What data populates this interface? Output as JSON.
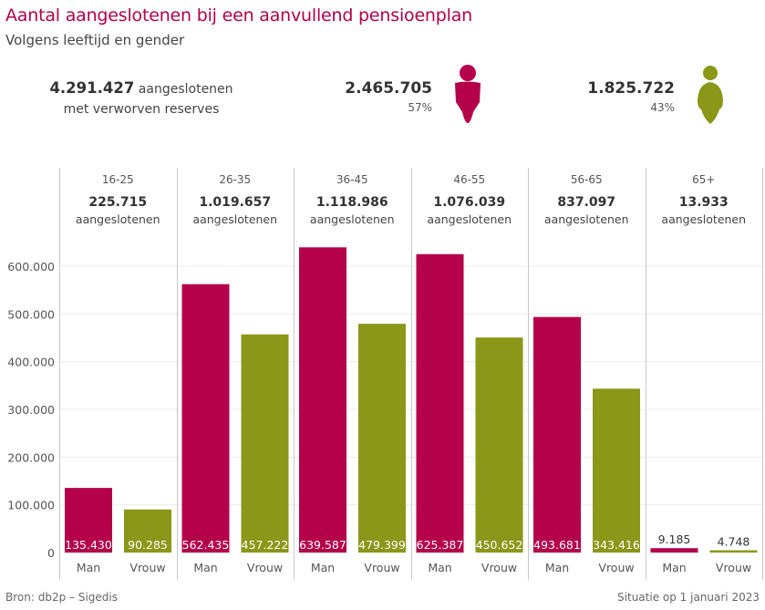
{
  "header": {
    "title": "Aantal aangeslotenen bij een aanvullend pensioenplan",
    "subtitle": "Volgens leeftijd en gender"
  },
  "kpis": {
    "total_value": "4.291.427",
    "total_label_1": "aangeslotenen",
    "total_label_2": "met verworven reserves",
    "men": {
      "value": "2.465.705",
      "pct": "57%",
      "icon": "male-person-icon",
      "color": "#b5004a"
    },
    "women": {
      "value": "1.825.722",
      "pct": "43%",
      "icon": "female-person-icon",
      "color": "#8b9718"
    }
  },
  "colors": {
    "man": "#b5004a",
    "vrouw": "#8b9718",
    "accent": "#b5004a"
  },
  "footer": {
    "source": "Bron: db2p – Sigedis",
    "date": "Situatie op 1 januari 2023"
  },
  "chart_data": {
    "type": "bar",
    "title": "Aantal aangeslotenen bij een aanvullend pensioenplan",
    "subtitle": "Volgens leeftijd en gender",
    "xlabel": "",
    "ylabel": "",
    "ylim": [
      0,
      600000
    ],
    "yticks": [
      0,
      100000,
      200000,
      300000,
      400000,
      500000,
      600000
    ],
    "ytick_labels": [
      "0",
      "100.000",
      "200.000",
      "300.000",
      "400.000",
      "500.000",
      "600.000"
    ],
    "grid": true,
    "panel_unit_label": "aangeslotenen",
    "categories": [
      "Man",
      "Vrouw"
    ],
    "panels": [
      {
        "age_group": "16-25",
        "total": "225.715",
        "values": [
          135430,
          90285
        ],
        "labels": [
          "135.430",
          "90.285"
        ]
      },
      {
        "age_group": "26-35",
        "total": "1.019.657",
        "values": [
          562435,
          457222
        ],
        "labels": [
          "562.435",
          "457.222"
        ]
      },
      {
        "age_group": "36-45",
        "total": "1.118.986",
        "values": [
          639587,
          479399
        ],
        "labels": [
          "639.587",
          "479.399"
        ]
      },
      {
        "age_group": "46-55",
        "total": "1.076.039",
        "values": [
          625387,
          450652
        ],
        "labels": [
          "625.387",
          "450.652"
        ]
      },
      {
        "age_group": "56-65",
        "total": "837.097",
        "values": [
          493681,
          343416
        ],
        "labels": [
          "493.681",
          "343.416"
        ]
      },
      {
        "age_group": "65+",
        "total": "13.933",
        "values": [
          9185,
          4748
        ],
        "labels": [
          "9.185",
          "4.748"
        ]
      }
    ],
    "series": [
      {
        "name": "Man",
        "color": "#b5004a"
      },
      {
        "name": "Vrouw",
        "color": "#8b9718"
      }
    ]
  }
}
